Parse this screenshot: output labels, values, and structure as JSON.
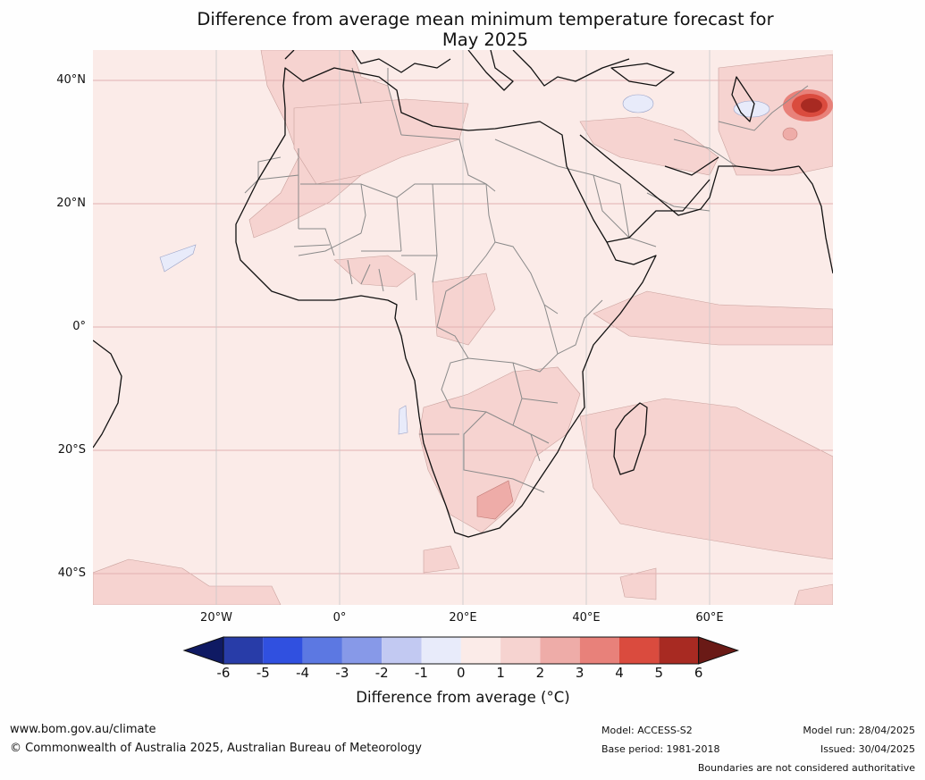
{
  "title_line1": "Difference from average mean minimum temperature forecast for",
  "title_line2": "May 2025",
  "lat_labels": [
    "40°N",
    "20°N",
    "0°",
    "20°S",
    "40°S"
  ],
  "lon_labels": [
    "20°W",
    "0°",
    "20°E",
    "40°E",
    "60°E"
  ],
  "colorbar": {
    "ticks": [
      "-6",
      "-5",
      "-4",
      "-3",
      "-2",
      "-1",
      "0",
      "1",
      "2",
      "3",
      "4",
      "5",
      "6"
    ],
    "colors": [
      "#0f1a63",
      "#283ca8",
      "#3050e0",
      "#5c78e2",
      "#8799e8",
      "#c2c9f2",
      "#e8ebfa",
      "#fbebe8",
      "#f6d3d0",
      "#eeaca8",
      "#e8817a",
      "#da4b3e",
      "#a82a22",
      "#6a1a16"
    ],
    "label": "Difference from average ($^\\circ$C)",
    "label_display": "Difference from average (°C)"
  },
  "map_colors": {
    "anomaly_0_1": "#fbebe8",
    "anomaly_1_2": "#f6d3d0",
    "anomaly_2_3": "#eeaca8",
    "anomaly_neg1_0": "#e8ebfa",
    "hotspot": "#a82a22",
    "gridline": "#e2b2b2"
  },
  "footer": {
    "site": "www.bom.gov.au/climate",
    "copyright": "© Commonwealth of Australia 2025, Australian Bureau of Meteorology",
    "model": "Model: ACCESS-S2",
    "base_period": "Base period: 1981-2018",
    "model_run": "Model run: 28/04/2025",
    "issued": "Issued: 30/04/2025",
    "disclaimer": "Boundaries are not considered authoritative"
  }
}
